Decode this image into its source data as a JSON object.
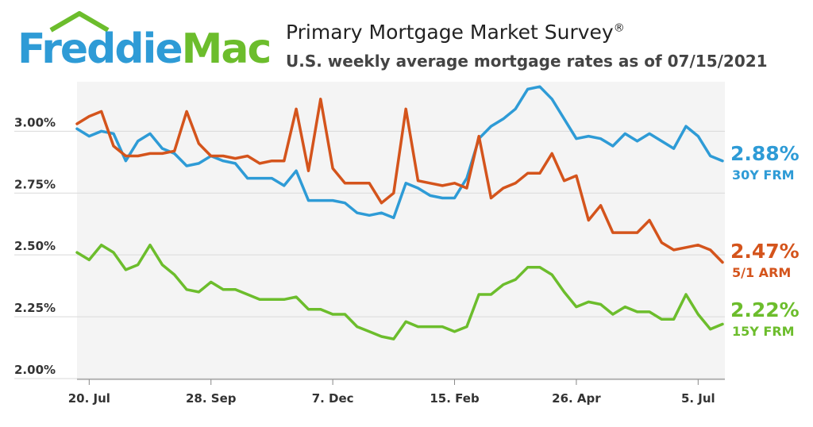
{
  "header": {
    "logo_part1": "Freddie",
    "logo_part2": "Mac",
    "title": "Primary Mortgage Market Survey",
    "title_mark": "®",
    "subtitle": "U.S. weekly average mortgage rates as of 07/15/2021"
  },
  "colors": {
    "brand_blue": "#2e9bd6",
    "brand_green": "#6cbd2c",
    "frm30": "#2e9bd6",
    "arm51": "#d4541c",
    "frm15": "#6cbd2c",
    "grid": "#d9d9d9",
    "plot_band": "#f4f4f4"
  },
  "chart_data": {
    "type": "line",
    "title": "Primary Mortgage Market Survey",
    "subtitle": "U.S. weekly average mortgage rates as of 07/15/2021",
    "ylim": [
      2.0,
      3.2
    ],
    "y_ticks": [
      {
        "value": 2.0,
        "label": "2.00%"
      },
      {
        "value": 2.25,
        "label": "2.25%"
      },
      {
        "value": 2.5,
        "label": "2.50%"
      },
      {
        "value": 2.75,
        "label": "2.75%"
      },
      {
        "value": 3.0,
        "label": "3.00%"
      }
    ],
    "x_ticks": [
      {
        "index": 1,
        "label": "20. Jul"
      },
      {
        "index": 11,
        "label": "28. Sep"
      },
      {
        "index": 21,
        "label": "7. Dec"
      },
      {
        "index": 31,
        "label": "15. Feb"
      },
      {
        "index": 41,
        "label": "26. Apr"
      },
      {
        "index": 51,
        "label": "5. Jul"
      }
    ],
    "grid": true,
    "legend": "end-of-line labels, right",
    "series": [
      {
        "key": "frm30",
        "name": "30Y FRM",
        "end_label": "2.88%",
        "values": [
          3.01,
          2.98,
          3.0,
          2.99,
          2.88,
          2.96,
          2.99,
          2.93,
          2.91,
          2.86,
          2.87,
          2.9,
          2.88,
          2.87,
          2.81,
          2.81,
          2.81,
          2.78,
          2.84,
          2.72,
          2.72,
          2.72,
          2.71,
          2.67,
          2.66,
          2.67,
          2.65,
          2.79,
          2.77,
          2.74,
          2.73,
          2.73,
          2.81,
          2.97,
          3.02,
          3.05,
          3.09,
          3.17,
          3.18,
          3.13,
          3.05,
          2.97,
          2.98,
          2.97,
          2.94,
          2.99,
          2.96,
          2.99,
          2.96,
          2.93,
          3.02,
          2.98,
          2.9,
          2.88
        ]
      },
      {
        "key": "arm51",
        "name": "5/1 ARM",
        "end_label": "2.47%",
        "values": [
          3.03,
          3.06,
          3.08,
          2.94,
          2.9,
          2.9,
          2.91,
          2.91,
          2.92,
          3.08,
          2.95,
          2.9,
          2.9,
          2.89,
          2.9,
          2.87,
          2.88,
          2.88,
          3.09,
          2.84,
          3.13,
          2.85,
          2.79,
          2.79,
          2.79,
          2.71,
          2.75,
          3.09,
          2.8,
          2.79,
          2.78,
          2.79,
          2.77,
          2.98,
          2.73,
          2.77,
          2.79,
          2.83,
          2.83,
          2.91,
          2.8,
          2.82,
          2.64,
          2.7,
          2.59,
          2.59,
          2.59,
          2.64,
          2.55,
          2.52,
          2.53,
          2.54,
          2.52,
          2.47
        ]
      },
      {
        "key": "frm15",
        "name": "15Y FRM",
        "end_label": "2.22%",
        "values": [
          2.51,
          2.48,
          2.54,
          2.51,
          2.44,
          2.46,
          2.54,
          2.46,
          2.42,
          2.36,
          2.35,
          2.39,
          2.36,
          2.36,
          2.34,
          2.32,
          2.32,
          2.32,
          2.33,
          2.28,
          2.28,
          2.26,
          2.26,
          2.21,
          2.19,
          2.17,
          2.16,
          2.23,
          2.21,
          2.21,
          2.21,
          2.19,
          2.21,
          2.34,
          2.34,
          2.38,
          2.4,
          2.45,
          2.45,
          2.42,
          2.35,
          2.29,
          2.31,
          2.3,
          2.26,
          2.29,
          2.27,
          2.27,
          2.24,
          2.24,
          2.34,
          2.26,
          2.2,
          2.22
        ]
      }
    ]
  }
}
